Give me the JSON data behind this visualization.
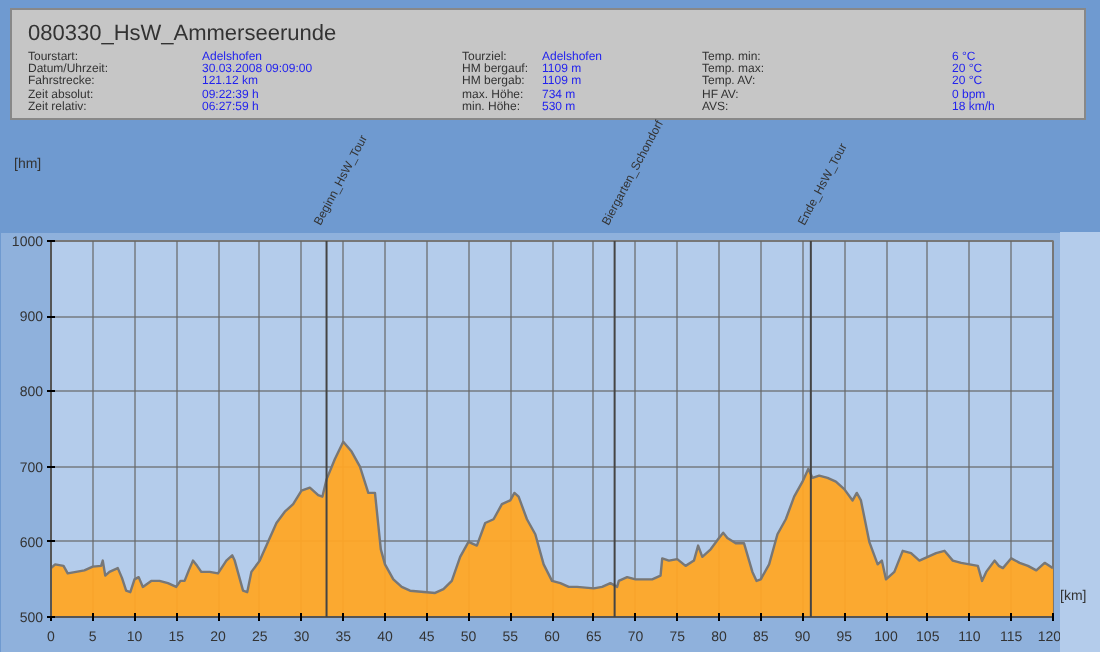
{
  "chart_data": {
    "type": "area",
    "title": "080330_HsW_Ammerseerunde",
    "annotations": [
      "Tourstart:",
      "Adelshofen",
      "Datum/Uhrzeit:",
      "30.03.2008 09:09:00",
      "Fahrstrecke:",
      "121.12 km",
      "Zeit absolut:",
      "09:22:39 h",
      "Zeit relativ:",
      "06:27:59 h",
      "Tourziel:",
      "Adelshofen",
      "HM bergauf:",
      "1109 m",
      "HM bergab:",
      "1109 m",
      "max. Höhe:",
      "734 m",
      "min. Höhe:",
      "530 m",
      "Temp. min:",
      "6 °C",
      "Temp. max:",
      "20 °C",
      "Temp. AV:",
      "20 °C",
      "HF AV:",
      "0 bpm",
      "AVS:",
      "18 km/h"
    ],
    "xlabel": "[km]",
    "ylabel": "[hm]",
    "x": [
      0,
      0.5,
      1.5,
      2,
      4,
      5,
      6,
      6.2,
      6.5,
      7,
      8,
      8.5,
      9,
      9.5,
      10,
      10.5,
      11,
      12,
      13,
      14,
      15,
      15.5,
      16,
      16.5,
      17,
      17.5,
      18,
      19,
      20,
      21,
      21.7,
      22,
      23,
      23.5,
      24,
      25,
      26,
      27,
      28,
      29,
      30,
      31,
      32,
      32.5,
      33,
      34,
      35,
      36,
      37,
      38,
      38.8,
      39.5,
      40,
      41,
      42,
      43,
      45,
      46,
      47,
      48,
      49,
      50,
      51,
      52,
      53,
      54,
      55,
      55.5,
      56,
      57,
      58,
      59,
      60,
      61,
      62,
      63,
      65,
      66,
      67,
      67.8,
      68,
      69,
      70,
      72,
      73,
      73.2,
      74,
      75,
      76,
      77,
      77.5,
      78,
      79,
      80,
      80.5,
      81,
      82,
      83,
      84,
      84.5,
      85,
      86,
      87,
      88,
      89,
      90,
      90.7,
      91.2,
      92,
      93,
      94,
      95,
      96,
      96.5,
      97,
      98,
      99,
      99.5,
      100,
      101,
      102,
      103,
      104,
      105,
      106,
      107,
      108,
      109,
      110,
      111,
      111.5,
      112,
      113,
      113.5,
      114,
      115,
      116,
      117,
      118,
      119,
      120
    ],
    "series": [
      {
        "color": "#ffa726",
        "values": [
          565,
          570,
          568,
          558,
          562,
          567,
          568,
          575,
          555,
          560,
          565,
          552,
          535,
          533,
          550,
          553,
          540,
          548,
          548,
          545,
          540,
          548,
          548,
          562,
          575,
          568,
          560,
          560,
          558,
          575,
          582,
          575,
          535,
          533,
          560,
          575,
          600,
          625,
          640,
          650,
          668,
          672,
          662,
          660,
          683,
          710,
          733,
          720,
          700,
          665,
          665,
          590,
          570,
          550,
          540,
          535,
          533,
          532,
          537,
          548,
          580,
          600,
          595,
          625,
          630,
          650,
          655,
          665,
          660,
          630,
          610,
          570,
          548,
          545,
          540,
          540,
          538,
          540,
          545,
          540,
          548,
          553,
          550,
          550,
          555,
          578,
          575,
          577,
          568,
          575,
          595,
          580,
          590,
          605,
          612,
          605,
          598,
          598,
          560,
          548,
          550,
          570,
          610,
          630,
          660,
          680,
          697,
          685,
          688,
          685,
          680,
          670,
          655,
          665,
          655,
          600,
          570,
          575,
          550,
          560,
          588,
          585,
          575,
          580,
          585,
          588,
          575,
          572,
          570,
          568,
          548,
          560,
          575,
          568,
          565,
          578,
          572,
          568,
          562,
          572,
          565
        ]
      }
    ],
    "xlim": [
      0,
      120
    ],
    "ylim": [
      500,
      1000
    ],
    "xticks": [
      0,
      5,
      10,
      15,
      20,
      25,
      30,
      35,
      40,
      45,
      50,
      55,
      60,
      65,
      70,
      75,
      80,
      85,
      90,
      95,
      100,
      105,
      110,
      115,
      120
    ],
    "yticks": [
      500,
      600,
      700,
      800,
      900,
      1000
    ],
    "ref_lines": [
      {
        "axis": "x",
        "value": 33,
        "label": "Beginn_HsW_Tour"
      },
      {
        "axis": "x",
        "value": 67.5,
        "label": "Biergarten_Schondorf"
      },
      {
        "axis": "x",
        "value": 91,
        "label": "Ende_HsW_Tour"
      }
    ],
    "grid": true
  }
}
